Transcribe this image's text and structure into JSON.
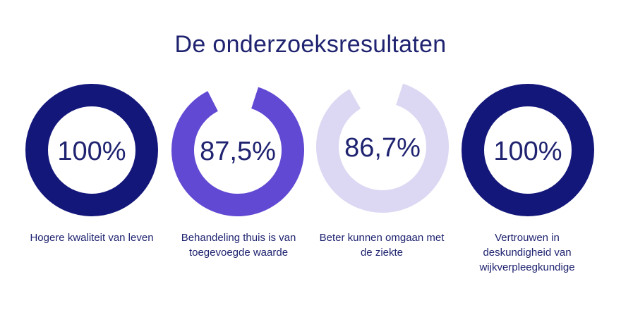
{
  "title": "De onderzoeksresultaten",
  "chart_data": {
    "type": "donut",
    "max": 100,
    "items": [
      {
        "value_label": "100%",
        "value": 100,
        "color": "#14177a",
        "label": "Hogere kwaliteit van leven"
      },
      {
        "value_label": "87,5%",
        "value": 87.5,
        "color": "#6249d3",
        "label": "Behandeling thuis is van toegevoegde waarde"
      },
      {
        "value_label": "86,7%",
        "value": 86.7,
        "color": "#dcd8f3",
        "label": "Beter kunnen omgaan met de ziekte"
      },
      {
        "value_label": "100%",
        "value": 100,
        "color": "#14177a",
        "label": "Vertrouwen in deskundigheid van wijkverpleegkundige"
      }
    ]
  }
}
